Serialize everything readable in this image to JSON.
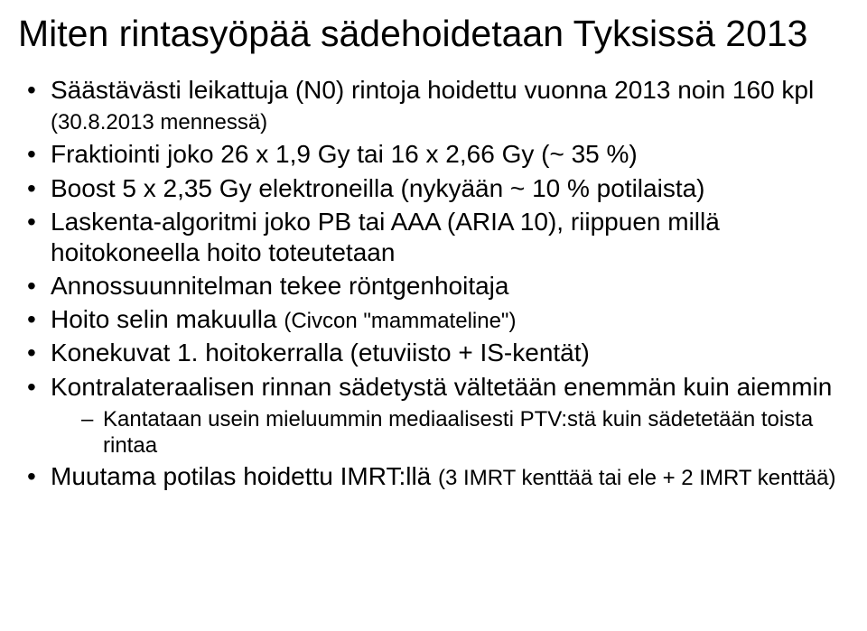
{
  "title": "Miten rintasyöpää sädehoidetaan Tyksissä 2013",
  "bullets": [
    {
      "text_a": "Säästävästi leikattuja (N0) rintoja hoidettu vuonna 2013 noin 160 kpl ",
      "small_a": "(30.8.2013 mennessä)"
    },
    {
      "text_a": "Fraktiointi joko 26 x 1,9 Gy tai 16 x 2,66 Gy (~ 35 %)"
    },
    {
      "text_a": "Boost 5 x 2,35 Gy elektroneilla (nykyään ~ 10 % potilaista)"
    },
    {
      "text_a": "Laskenta-algoritmi joko PB tai AAA (ARIA 10), riippuen millä hoitokoneella hoito toteutetaan"
    },
    {
      "text_a": "Annossuunnitelman tekee röntgenhoitaja"
    },
    {
      "text_a": "Hoito selin makuulla ",
      "small_a": "(Civcon \"mammateline\")"
    },
    {
      "text_a": "Konekuvat 1. hoitokerralla (etuviisto + IS-kentät)"
    },
    {
      "text_a": "Kontralateraalisen rinnan sädetystä vältetään enemmän kuin aiemmin",
      "sub": [
        "Kantataan usein mieluummin mediaalisesti PTV:stä kuin sädetetään toista rintaa"
      ]
    },
    {
      "text_a": "Muutama potilas hoidettu IMRT:llä ",
      "small_a": "(3 IMRT kenttää tai ele + 2 IMRT kenttää)"
    }
  ]
}
